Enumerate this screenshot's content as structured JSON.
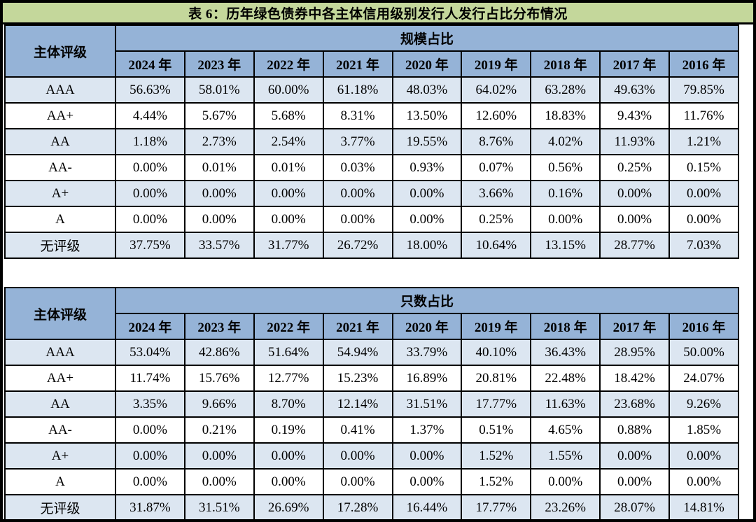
{
  "title": "表 6：历年绿色债券中各主体信用级别发行人发行占比分布情况",
  "colors": {
    "title_bg": "#C4D79B",
    "header_bg": "#95B3D7",
    "row_alt_bg": "#DCE6F1",
    "row_bg": "#FFFFFF",
    "border": "#000000"
  },
  "rating_header": "主体评级",
  "years": [
    "2024 年",
    "2023 年",
    "2022 年",
    "2021 年",
    "2020 年",
    "2019 年",
    "2018 年",
    "2017 年",
    "2016 年"
  ],
  "tables": [
    {
      "section_header": "规模占比",
      "rows": [
        {
          "label": "AAA",
          "values": [
            "56.63%",
            "58.01%",
            "60.00%",
            "61.18%",
            "48.03%",
            "64.02%",
            "63.28%",
            "49.63%",
            "79.85%"
          ]
        },
        {
          "label": "AA+",
          "values": [
            "4.44%",
            "5.67%",
            "5.68%",
            "8.31%",
            "13.50%",
            "12.60%",
            "18.83%",
            "9.43%",
            "11.76%"
          ]
        },
        {
          "label": "AA",
          "values": [
            "1.18%",
            "2.73%",
            "2.54%",
            "3.77%",
            "19.55%",
            "8.76%",
            "4.02%",
            "11.93%",
            "1.21%"
          ]
        },
        {
          "label": "AA-",
          "values": [
            "0.00%",
            "0.01%",
            "0.01%",
            "0.03%",
            "0.93%",
            "0.07%",
            "0.56%",
            "0.25%",
            "0.15%"
          ]
        },
        {
          "label": "A+",
          "values": [
            "0.00%",
            "0.00%",
            "0.00%",
            "0.00%",
            "0.00%",
            "3.66%",
            "0.16%",
            "0.00%",
            "0.00%"
          ]
        },
        {
          "label": "A",
          "values": [
            "0.00%",
            "0.00%",
            "0.00%",
            "0.00%",
            "0.00%",
            "0.25%",
            "0.00%",
            "0.00%",
            "0.00%"
          ]
        },
        {
          "label": "无评级",
          "values": [
            "37.75%",
            "33.57%",
            "31.77%",
            "26.72%",
            "18.00%",
            "10.64%",
            "13.15%",
            "28.77%",
            "7.03%"
          ]
        }
      ]
    },
    {
      "section_header": "只数占比",
      "rows": [
        {
          "label": "AAA",
          "values": [
            "53.04%",
            "42.86%",
            "51.64%",
            "54.94%",
            "33.79%",
            "40.10%",
            "36.43%",
            "28.95%",
            "50.00%"
          ]
        },
        {
          "label": "AA+",
          "values": [
            "11.74%",
            "15.76%",
            "12.77%",
            "15.23%",
            "16.89%",
            "20.81%",
            "22.48%",
            "18.42%",
            "24.07%"
          ]
        },
        {
          "label": "AA",
          "values": [
            "3.35%",
            "9.66%",
            "8.70%",
            "12.14%",
            "31.51%",
            "17.77%",
            "11.63%",
            "23.68%",
            "9.26%"
          ]
        },
        {
          "label": "AA-",
          "values": [
            "0.00%",
            "0.21%",
            "0.19%",
            "0.41%",
            "1.37%",
            "0.51%",
            "4.65%",
            "0.88%",
            "1.85%"
          ]
        },
        {
          "label": "A+",
          "values": [
            "0.00%",
            "0.00%",
            "0.00%",
            "0.00%",
            "0.00%",
            "1.52%",
            "1.55%",
            "0.00%",
            "0.00%"
          ]
        },
        {
          "label": "A",
          "values": [
            "0.00%",
            "0.00%",
            "0.00%",
            "0.00%",
            "0.00%",
            "1.52%",
            "0.00%",
            "0.00%",
            "0.00%"
          ]
        },
        {
          "label": "无评级",
          "values": [
            "31.87%",
            "31.51%",
            "26.69%",
            "17.28%",
            "16.44%",
            "17.77%",
            "23.26%",
            "28.07%",
            "14.81%"
          ]
        }
      ]
    }
  ]
}
